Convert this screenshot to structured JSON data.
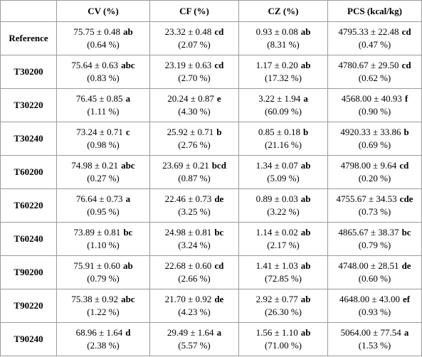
{
  "table": {
    "header": [
      "CV (%)",
      "CF (%)",
      "CZ (%)",
      "PCS (kcal/kg)"
    ],
    "rows": [
      {
        "name": "Reference",
        "cells": [
          [
            "75.75 ± 0.48",
            "ab",
            "(0.64 %)"
          ],
          [
            "23.32 ± 0.48",
            "cd",
            "(2.07 %)"
          ],
          [
            "0.93 ± 0.08",
            "ab",
            "(8.31 %)"
          ],
          [
            "4795.33 ± 22.48",
            "cd",
            "(0.47 %)"
          ]
        ]
      },
      {
        "name": "T30200",
        "cells": [
          [
            "75.64 ± 0.63",
            "abc",
            "(0.83 %)"
          ],
          [
            "23.19 ± 0.63",
            "cd",
            "(2.70 %)"
          ],
          [
            "1.17 ± 0.20",
            "ab",
            "(17.32 %)"
          ],
          [
            "4780.67 ± 29.50",
            "cd",
            "(0.62 %)"
          ]
        ]
      },
      {
        "name": "T30220",
        "cells": [
          [
            "76.45 ± 0.85",
            "a",
            "(1.11 %)"
          ],
          [
            "20.24 ± 0.87",
            "e",
            "(4.30 %)"
          ],
          [
            "3.22 ± 1.94",
            "a",
            "(60.09 %)"
          ],
          [
            "4568.00 ± 40.93",
            "f",
            "(0.90 %)"
          ]
        ]
      },
      {
        "name": "T30240",
        "cells": [
          [
            "73.24 ± 0.71",
            "c",
            "(0.98 %)"
          ],
          [
            "25.92 ± 0.71",
            "b",
            "(2.76 %)"
          ],
          [
            "0.85 ± 0.18",
            "b",
            "(21.16 %)"
          ],
          [
            "4920.33 ± 33.86",
            "b",
            "(0.69 %)"
          ]
        ]
      },
      {
        "name": "T60200",
        "cells": [
          [
            "74.98 ± 0.21",
            "abc",
            "(0.27 %)"
          ],
          [
            "23.69 ± 0.21",
            "bcd",
            "(0.87 %)"
          ],
          [
            "1.34 ± 0.07",
            "ab",
            "(5.09 %)"
          ],
          [
            "4798.00 ± 9.64",
            "cd",
            "(0.20 %)"
          ]
        ]
      },
      {
        "name": "T60220",
        "cells": [
          [
            "76.64 ± 0.73",
            "a",
            "(0.95 %)"
          ],
          [
            "22.46 ± 0.73",
            "de",
            "(3.25 %)"
          ],
          [
            "0.89 ± 0.03",
            "ab",
            "(3.22 %)"
          ],
          [
            "4755.67 ± 34.53",
            "cde",
            "(0.73 %)"
          ]
        ]
      },
      {
        "name": "T60240",
        "cells": [
          [
            "73.89 ± 0.81",
            "bc",
            "(1.10 %)"
          ],
          [
            "24.98 ± 0.81",
            "bc",
            "(3.24 %)"
          ],
          [
            "1.14 ± 0.02",
            "ab",
            "(2.17 %)"
          ],
          [
            "4865.67 ± 38.37",
            "bc",
            "(0.79 %)"
          ]
        ]
      },
      {
        "name": "T90200",
        "cells": [
          [
            "75.91 ± 0.60",
            "ab",
            "(0.79 %)"
          ],
          [
            "22.68 ± 0.60",
            "cd",
            "(2.66 %)"
          ],
          [
            "1.41 ± 1.03",
            "ab",
            "(72.85 %)"
          ],
          [
            "4748.00 ± 28.51",
            "de",
            "(0.60 %)"
          ]
        ]
      },
      {
        "name": "T90220",
        "cells": [
          [
            "75.38 ± 0.92",
            "abc",
            "(1.22 %)"
          ],
          [
            "21.70 ± 0.92",
            "de",
            "(4.23 %)"
          ],
          [
            "2.92 ± 0.77",
            "ab",
            "(26.30 %)"
          ],
          [
            "4648.00 ± 43.00",
            "ef",
            "(0.93 %)"
          ]
        ]
      },
      {
        "name": "T90240",
        "cells": [
          [
            "68.96 ± 1.64",
            "d",
            "(2.38 %)"
          ],
          [
            "29.49 ± 1.64",
            "a",
            "(5.57 %)"
          ],
          [
            "1.56 ± 1.10",
            "ab",
            "(71.00 %)"
          ],
          [
            "5064.00 ± 77.54",
            "a",
            "(1.53 %)"
          ]
        ]
      }
    ]
  }
}
